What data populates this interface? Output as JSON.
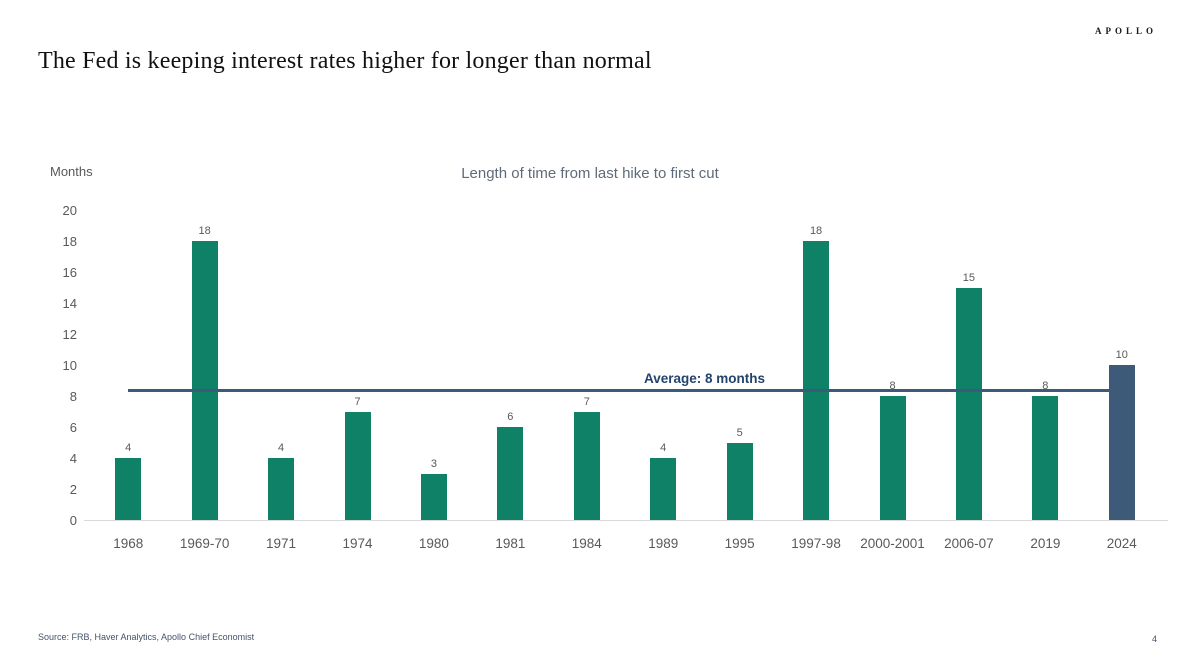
{
  "page": {
    "brand": "APOLLO",
    "title": "The Fed is keeping interest rates higher for longer than normal",
    "source": "Source: FRB, Haver Analytics, Apollo Chief Economist",
    "page_number": "4"
  },
  "chart_data": {
    "type": "bar",
    "title": "Length of time from last hike to first cut",
    "xlabel": "",
    "ylabel": "Months",
    "ylim": [
      0,
      20
    ],
    "yticks": [
      0,
      2,
      4,
      6,
      8,
      10,
      12,
      14,
      16,
      18,
      20
    ],
    "grid": false,
    "legend": null,
    "categories": [
      "1968",
      "1969-70",
      "1971",
      "1974",
      "1980",
      "1981",
      "1984",
      "1989",
      "1995",
      "1997-98",
      "2000-2001",
      "2006-07",
      "2019",
      "2024"
    ],
    "values": [
      4,
      18,
      4,
      7,
      3,
      6,
      7,
      4,
      5,
      18,
      8,
      15,
      8,
      10
    ],
    "data_labels": true,
    "highlight_category": "2024",
    "average_line": {
      "label": "Average: 8 months",
      "value": 8.36
    },
    "colors": {
      "bar": "#0e8166",
      "highlight_bar": "#3d5a78",
      "average_line": "#3d5a78",
      "label_gray": "#595959",
      "average_label": "#24436b"
    }
  }
}
